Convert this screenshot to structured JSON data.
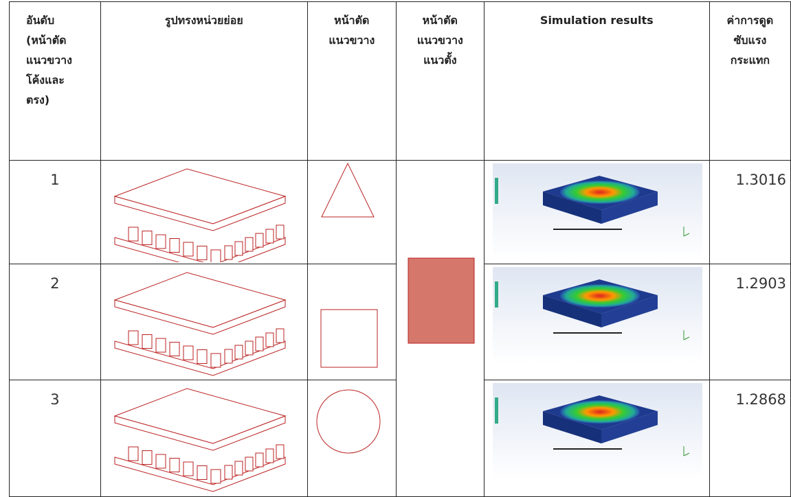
{
  "table": {
    "headers": [
      [
        "อันดับ",
        "(หน้าตัด",
        "แนวขวาง",
        "โค้งและ",
        "ตรง)"
      ],
      [
        "รูปทรงหน่วยย่อย"
      ],
      [
        "หน้าตัด",
        "แนวขวาง"
      ],
      [
        "หน้าตัด",
        "แนวขวาง",
        "แนวตั้ง"
      ],
      [
        "Simulation results"
      ],
      [
        "ค่าการดูด",
        "ซับแรง",
        "กระแทก"
      ]
    ],
    "rows": [
      {
        "rank": 1,
        "value": 1.3016
      },
      {
        "rank": 2,
        "value": 1.2903
      },
      {
        "rank": 3,
        "value": 1.2868
      }
    ]
  }
}
